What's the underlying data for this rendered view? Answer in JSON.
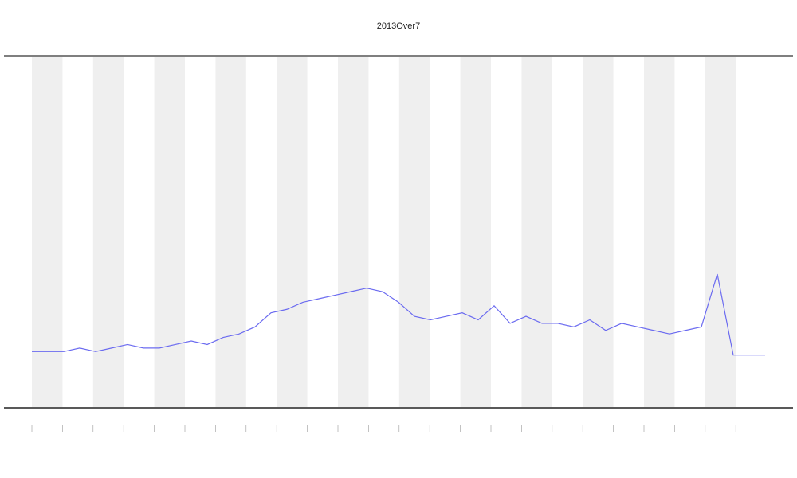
{
  "chart_data": {
    "type": "line",
    "title": "2013Over7",
    "x": [
      0,
      1,
      2,
      3,
      4,
      5,
      6,
      7,
      8,
      9,
      10,
      11,
      12,
      13,
      14,
      15,
      16,
      17,
      18,
      19,
      20,
      21,
      22,
      23,
      24,
      25,
      26,
      27,
      28,
      29,
      30,
      31,
      32,
      33,
      34,
      35,
      36,
      37,
      38,
      39,
      40,
      41,
      42,
      43,
      44,
      45,
      46
    ],
    "series": [
      {
        "color": "#6b6bf0",
        "values": [
          16,
          16,
          16,
          17,
          16,
          17,
          18,
          17,
          17,
          18,
          19,
          18,
          20,
          21,
          23,
          27,
          28,
          30,
          31,
          32,
          33,
          34,
          33,
          30,
          26,
          25,
          26,
          27,
          25,
          29,
          24,
          26,
          24,
          24,
          23,
          25,
          22,
          24,
          23,
          22,
          21,
          22,
          23,
          38,
          15,
          15,
          15
        ]
      }
    ],
    "xlim": [
      0,
      46
    ],
    "ylim": [
      0,
      100
    ]
  }
}
